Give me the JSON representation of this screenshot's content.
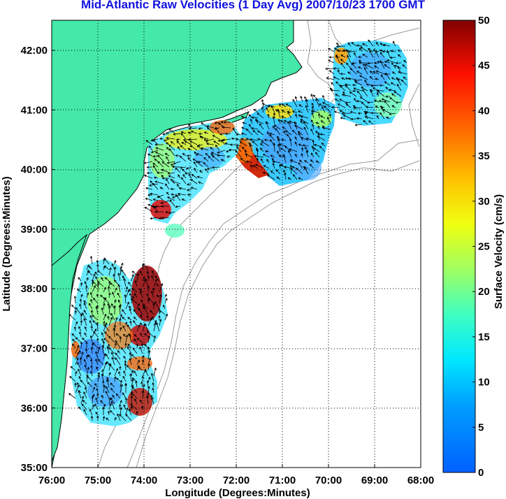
{
  "title": "Mid-Atlantic Raw Velocities (1 Day Avg) 2007/10/23 1700 GMT",
  "xlabel": "Longitude (Degrees:Minutes)",
  "ylabel": "Latitude (Degrees:Minutes)",
  "colorbar_label": "Surface Velocity (cm/s)",
  "x_ticks": [
    "76:00",
    "75:00",
    "74:00",
    "73:00",
    "72:00",
    "71:00",
    "70:00",
    "69:00",
    "68:00"
  ],
  "y_ticks": [
    "42:00",
    "41:00",
    "40:00",
    "39:00",
    "38:00",
    "37:00",
    "36:00",
    "35:00"
  ],
  "colorbar_ticks": [
    "50",
    "45",
    "40",
    "35",
    "30",
    "25",
    "20",
    "15",
    "10",
    "5",
    "0"
  ],
  "colors": {
    "land": "#44e8a8",
    "title": "#1010e0",
    "bathymetry": "#999999",
    "coast_outline": "#000000"
  },
  "chart_data": {
    "type": "heatmap",
    "title": "Mid-Atlantic Raw Velocities (1 Day Avg) 2007/10/23 1700 GMT",
    "xlabel": "Longitude (Degrees:Minutes)",
    "ylabel": "Latitude (Degrees:Minutes)",
    "xlim": [
      -76.0,
      -68.0
    ],
    "ylim": [
      35.0,
      42.5
    ],
    "colorbar": {
      "label": "Surface Velocity (cm/s)",
      "range": [
        0,
        50
      ],
      "colormap": "jet"
    },
    "grid": true,
    "regions": [
      {
        "name": "",
        "lon_range": [
          -69.8,
          -68.2
        ],
        "lat_range": [
          40.8,
          42.2
        ],
        "typical_speed_cm_s": 10
      },
      {
        "name": "",
        "lon_range": [
          -71.8,
          -69.6
        ],
        "lat_range": [
          39.9,
          41.2
        ],
        "typical_speed_cm_s": 12
      },
      {
        "name": "",
        "lon_range": [
          -74.1,
          -72.0
        ],
        "lat_range": [
          38.9,
          40.9
        ],
        "typical_speed_cm_s": 18
      },
      {
        "name": "",
        "lon_range": [
          -76.0,
          -73.6
        ],
        "lat_range": [
          35.8,
          38.5
        ],
        "typical_speed_cm_s": 15
      }
    ]
  }
}
